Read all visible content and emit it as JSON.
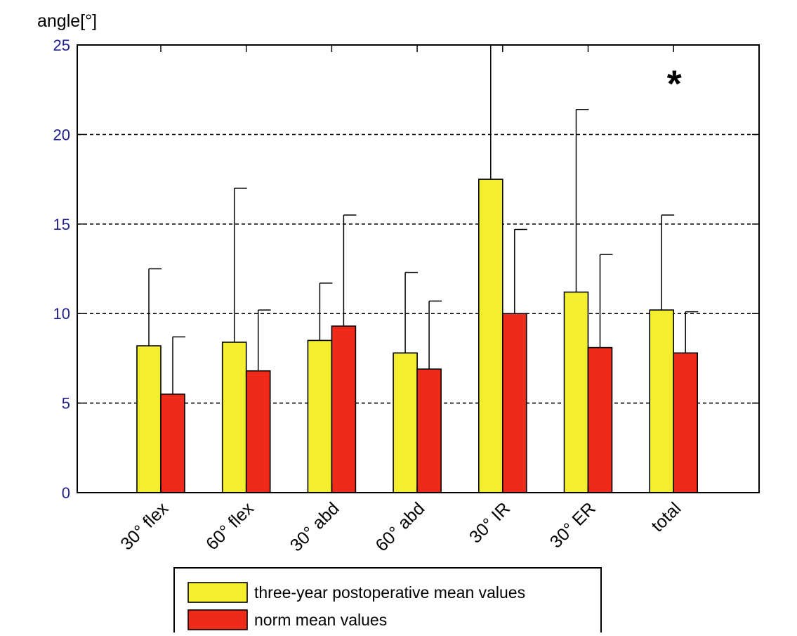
{
  "chart_data": {
    "type": "bar",
    "title": "",
    "xlabel": "",
    "ylabel": "angle[°]",
    "ylim": [
      0,
      25
    ],
    "yticks": [
      0,
      5,
      10,
      15,
      20,
      25
    ],
    "grid": "horizontal dashed",
    "categories": [
      "30° flex",
      "60° flex",
      "30° abd",
      "60° abd",
      "30° IR",
      "30° ER",
      "total"
    ],
    "series": [
      {
        "name": "three-year postoperative mean values",
        "color": "#f3ef2e",
        "values": [
          8.2,
          8.4,
          8.5,
          7.8,
          17.5,
          11.2,
          10.2
        ],
        "error_upper": [
          12.5,
          17.0,
          11.7,
          12.3,
          25.0,
          21.4,
          15.5
        ]
      },
      {
        "name": "norm mean values",
        "color": "#ef2a18",
        "values": [
          5.5,
          6.8,
          9.3,
          6.9,
          10.0,
          8.1,
          7.8
        ],
        "error_upper": [
          8.7,
          10.2,
          15.5,
          10.7,
          14.7,
          13.3,
          10.1
        ]
      }
    ],
    "annotations": [
      {
        "text": "*",
        "x": "total",
        "y": 22.9
      }
    ],
    "legend_position": "bottom"
  }
}
